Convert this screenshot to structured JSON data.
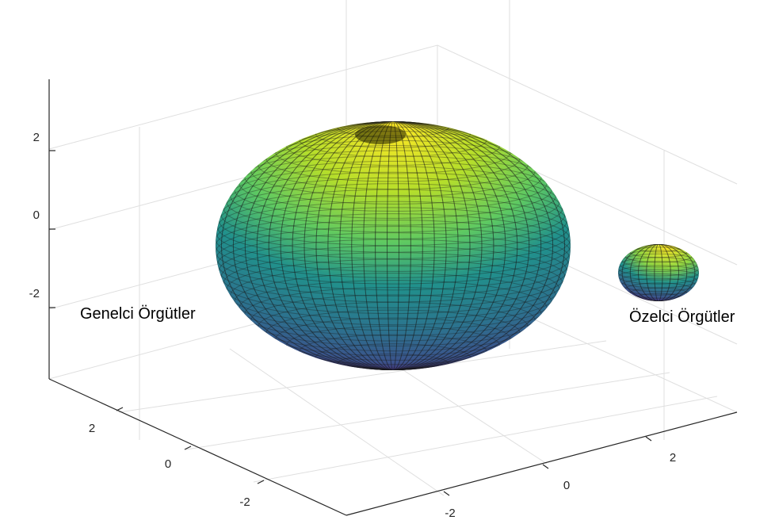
{
  "chart_data": {
    "type": "surface3d",
    "title": "",
    "colormap": [
      "#440154",
      "#3b528b",
      "#21918c",
      "#5ec962",
      "#fde725"
    ],
    "grid": true,
    "axes": {
      "z": {
        "ticks": [
          -2,
          0,
          2
        ],
        "tick_labels": [
          "-2",
          "0",
          "2"
        ]
      },
      "y": {
        "ticks": [
          -2,
          0,
          2
        ],
        "tick_labels": [
          "-2",
          "0",
          "2"
        ]
      },
      "x": {
        "ticks": [
          -2,
          0,
          2
        ],
        "tick_labels": [
          "-2",
          "0",
          "2"
        ]
      }
    },
    "series": [
      {
        "name": "Genelci Örgütler",
        "shape": "ellipsoid",
        "center": [
          0,
          0,
          0
        ],
        "relative_size": "large"
      },
      {
        "name": "Özelci Örgütler",
        "shape": "sphere",
        "center": [
          3.5,
          1.5,
          -0.5
        ],
        "relative_size": "small"
      }
    ]
  }
}
